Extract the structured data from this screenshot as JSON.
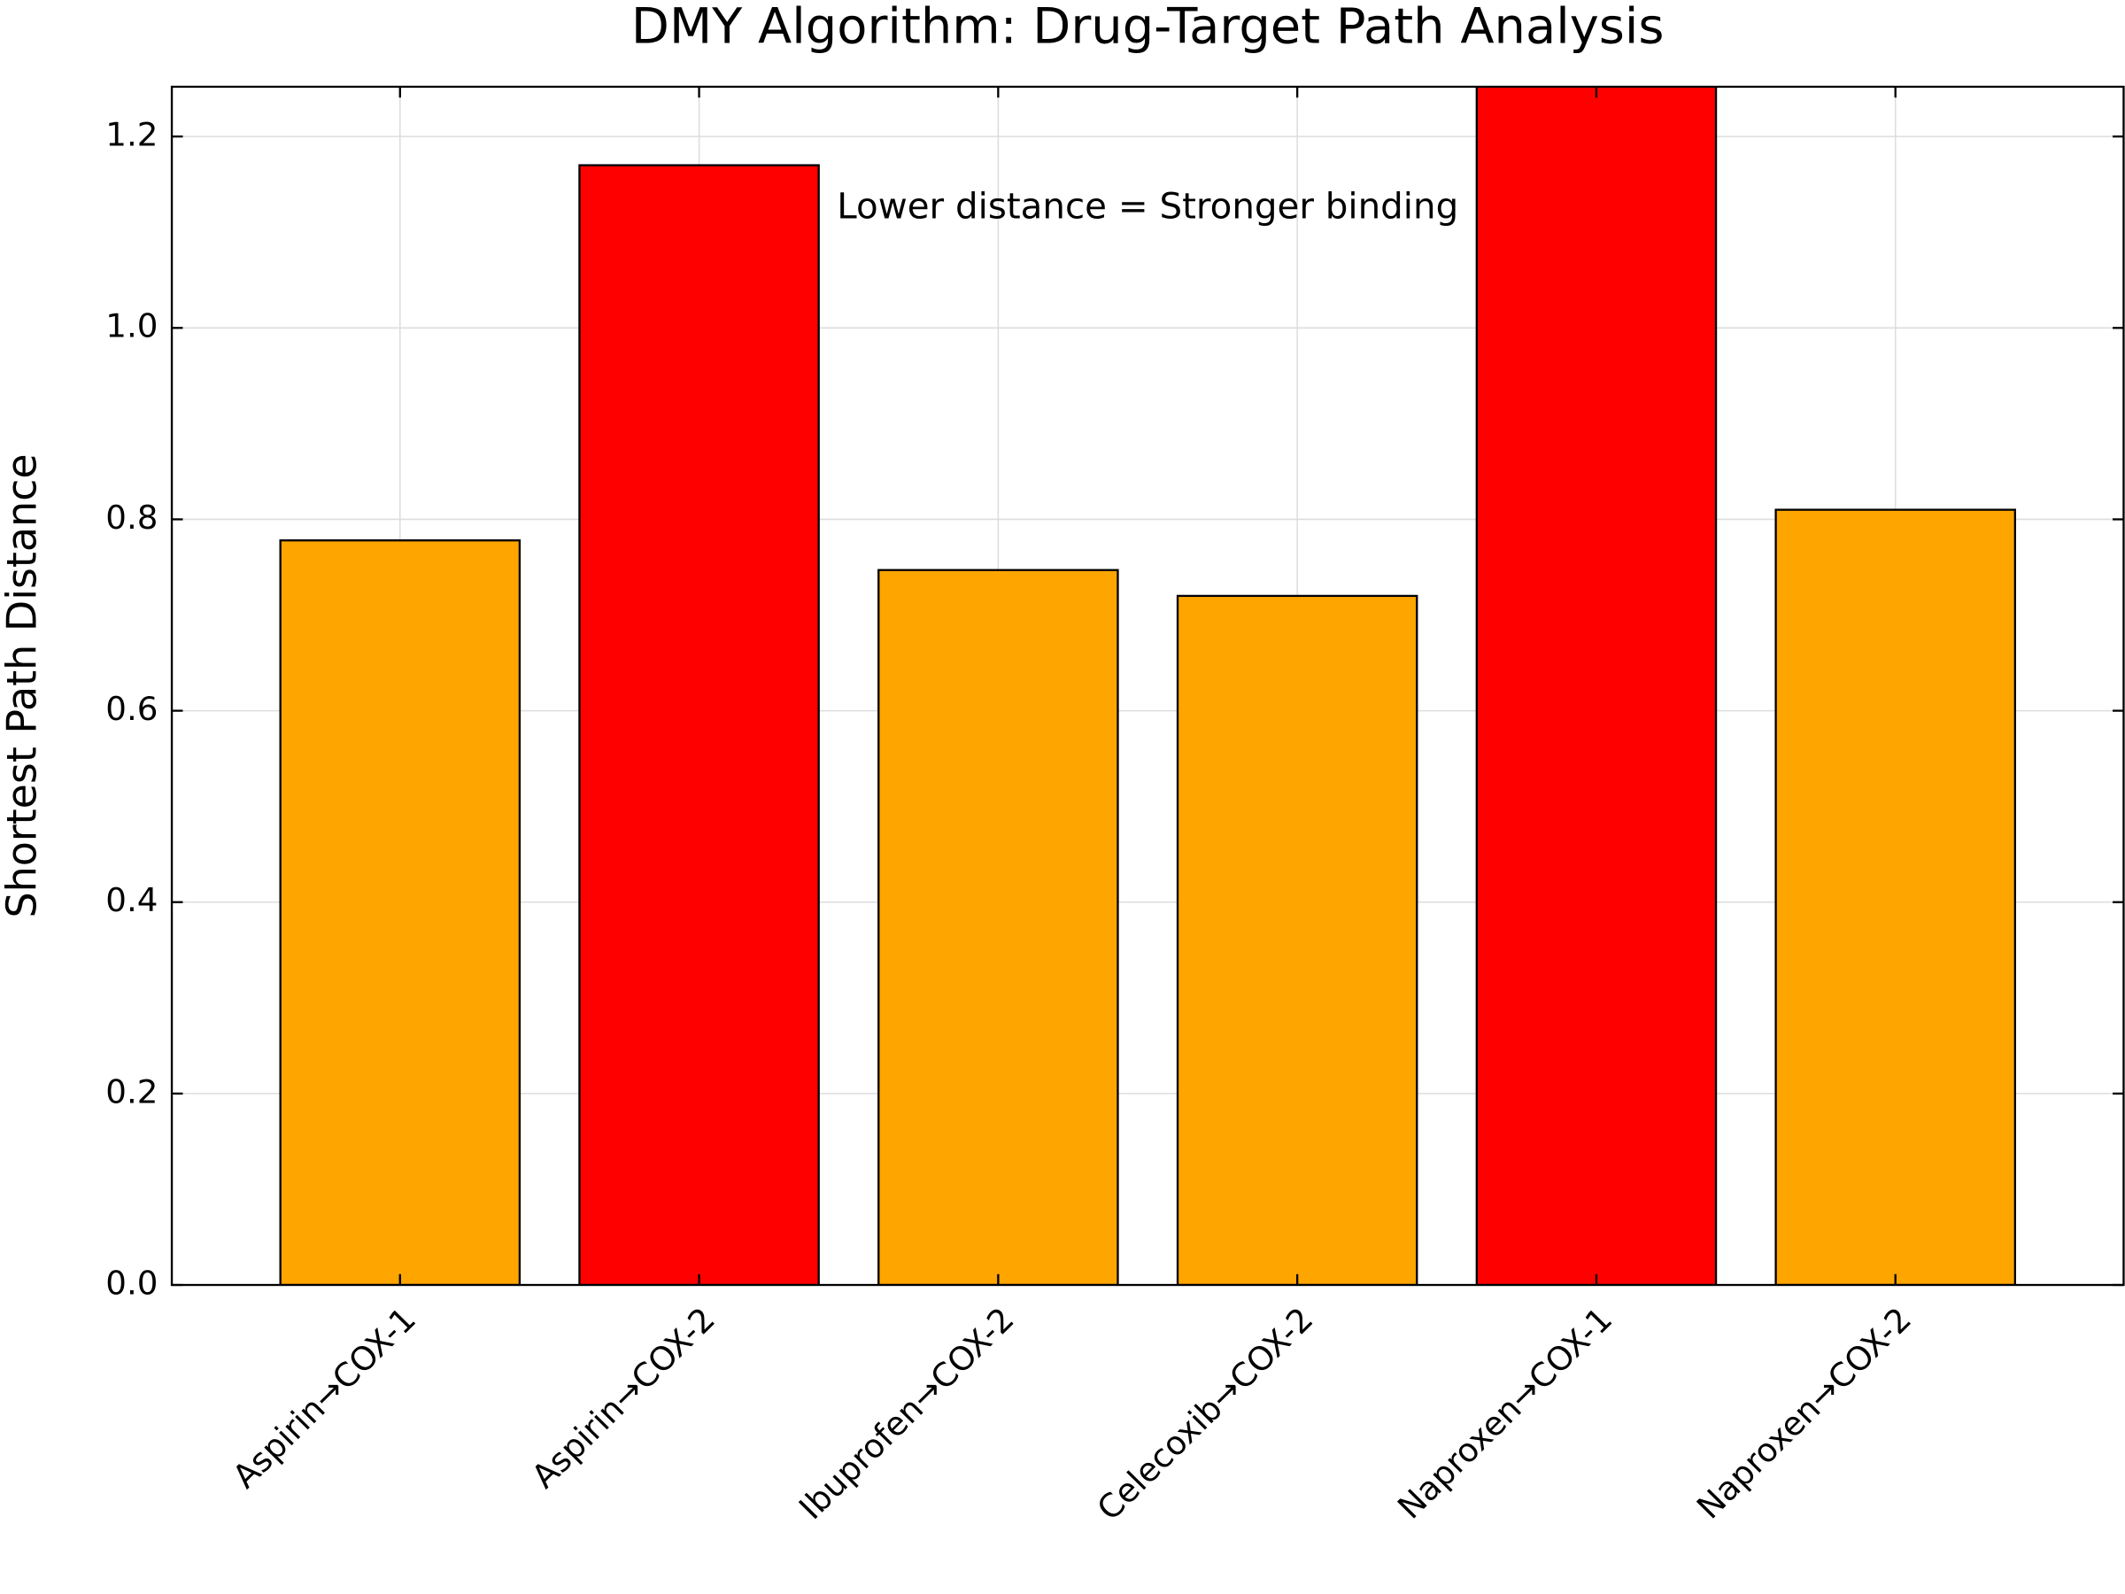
{
  "chart_data": {
    "type": "bar",
    "title": "DMY Algorithm: Drug-Target Path Analysis",
    "annotation": "Lower distance = Stronger binding",
    "y_label": "Shortest Path Distance",
    "categories": [
      "Aspirin→COX-1",
      "Aspirin→COX-2",
      "Ibuprofen→COX-2",
      "Celecoxib→COX-2",
      "Naproxen→COX-1",
      "Naproxen→COX-2"
    ],
    "values": [
      0.778,
      1.17,
      0.747,
      0.72,
      1.3,
      0.81
    ],
    "colors": [
      "#ffa500",
      "#ff0000",
      "#ffa500",
      "#ffa500",
      "#ff0000",
      "#ffa500"
    ],
    "ylim": [
      0,
      1.252
    ],
    "yticks": [
      {
        "value": 0,
        "label": "0.0"
      },
      0.2,
      0.4,
      0.6,
      0.8,
      {
        "value": 1,
        "label": "1.0"
      },
      1.2
    ],
    "grid": true
  }
}
